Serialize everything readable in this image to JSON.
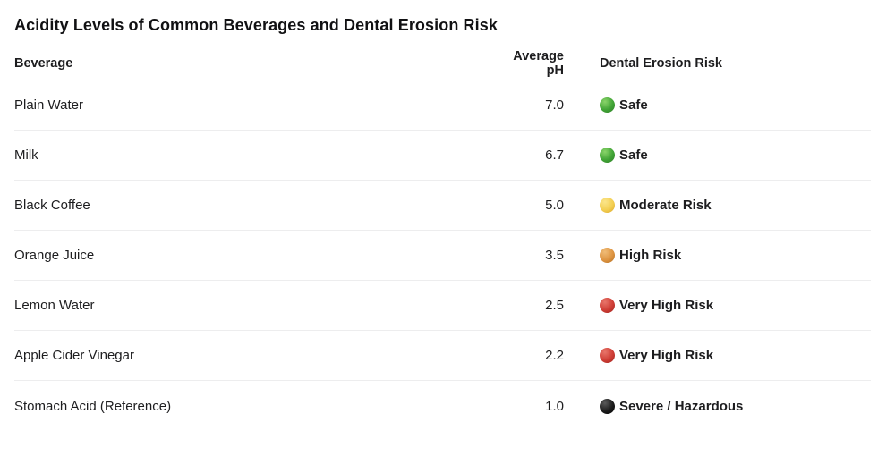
{
  "title": "Acidity Levels of Common Beverages and Dental Erosion Risk",
  "chart_data": {
    "type": "table",
    "title": "Acidity Levels of Common Beverages and Dental Erosion Risk",
    "columns": [
      "Beverage",
      "Average pH",
      "Dental Erosion Risk"
    ],
    "rows": [
      {
        "beverage": "Plain Water",
        "ph": "7.0",
        "risk": "Safe",
        "risk_color": "green"
      },
      {
        "beverage": "Milk",
        "ph": "6.7",
        "risk": "Safe",
        "risk_color": "green"
      },
      {
        "beverage": "Black Coffee",
        "ph": "5.0",
        "risk": "Moderate Risk",
        "risk_color": "yellow"
      },
      {
        "beverage": "Orange Juice",
        "ph": "3.5",
        "risk": "High Risk",
        "risk_color": "orange"
      },
      {
        "beverage": "Lemon Water",
        "ph": "2.5",
        "risk": "Very High Risk",
        "risk_color": "red"
      },
      {
        "beverage": "Apple Cider Vinegar",
        "ph": "2.2",
        "risk": "Very High Risk",
        "risk_color": "red"
      },
      {
        "beverage": "Stomach Acid (Reference)",
        "ph": "1.0",
        "risk": "Severe / Hazardous",
        "risk_color": "black"
      }
    ]
  },
  "colors": {
    "green": {
      "light": "#8ad46a",
      "main": "#41a436",
      "edge": "#2e7d27"
    },
    "yellow": {
      "light": "#fbe58a",
      "main": "#f3cf52",
      "edge": "#d9a42a"
    },
    "orange": {
      "light": "#f0bc77",
      "main": "#de9542",
      "edge": "#b06c22"
    },
    "red": {
      "light": "#e8756a",
      "main": "#cf3e36",
      "edge": "#9c221d"
    },
    "black": {
      "light": "#5a5a5a",
      "main": "#1c1c1c",
      "edge": "#000000"
    }
  }
}
